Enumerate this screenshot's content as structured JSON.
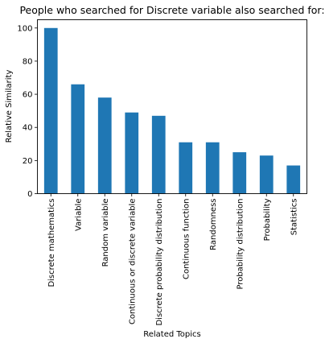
{
  "chart_data": {
    "type": "bar",
    "title": "People who searched for Discrete variable also searched for:",
    "xlabel": "Related Topics",
    "ylabel": "Relative Similarity",
    "categories": [
      "Discrete mathematics",
      "Variable",
      "Random variable",
      "Continuous or discrete variable",
      "Discrete probability distribution",
      "Continuous function",
      "Randomness",
      "Probability distribution",
      "Probability",
      "Statistics"
    ],
    "values": [
      100,
      66,
      58,
      49,
      47,
      31,
      31,
      25,
      23,
      17
    ],
    "ylim": [
      0,
      105
    ],
    "yticks": [
      0,
      20,
      40,
      60,
      80,
      100
    ],
    "bar_color": "#1f77b4",
    "grid": false,
    "legend": "none"
  }
}
